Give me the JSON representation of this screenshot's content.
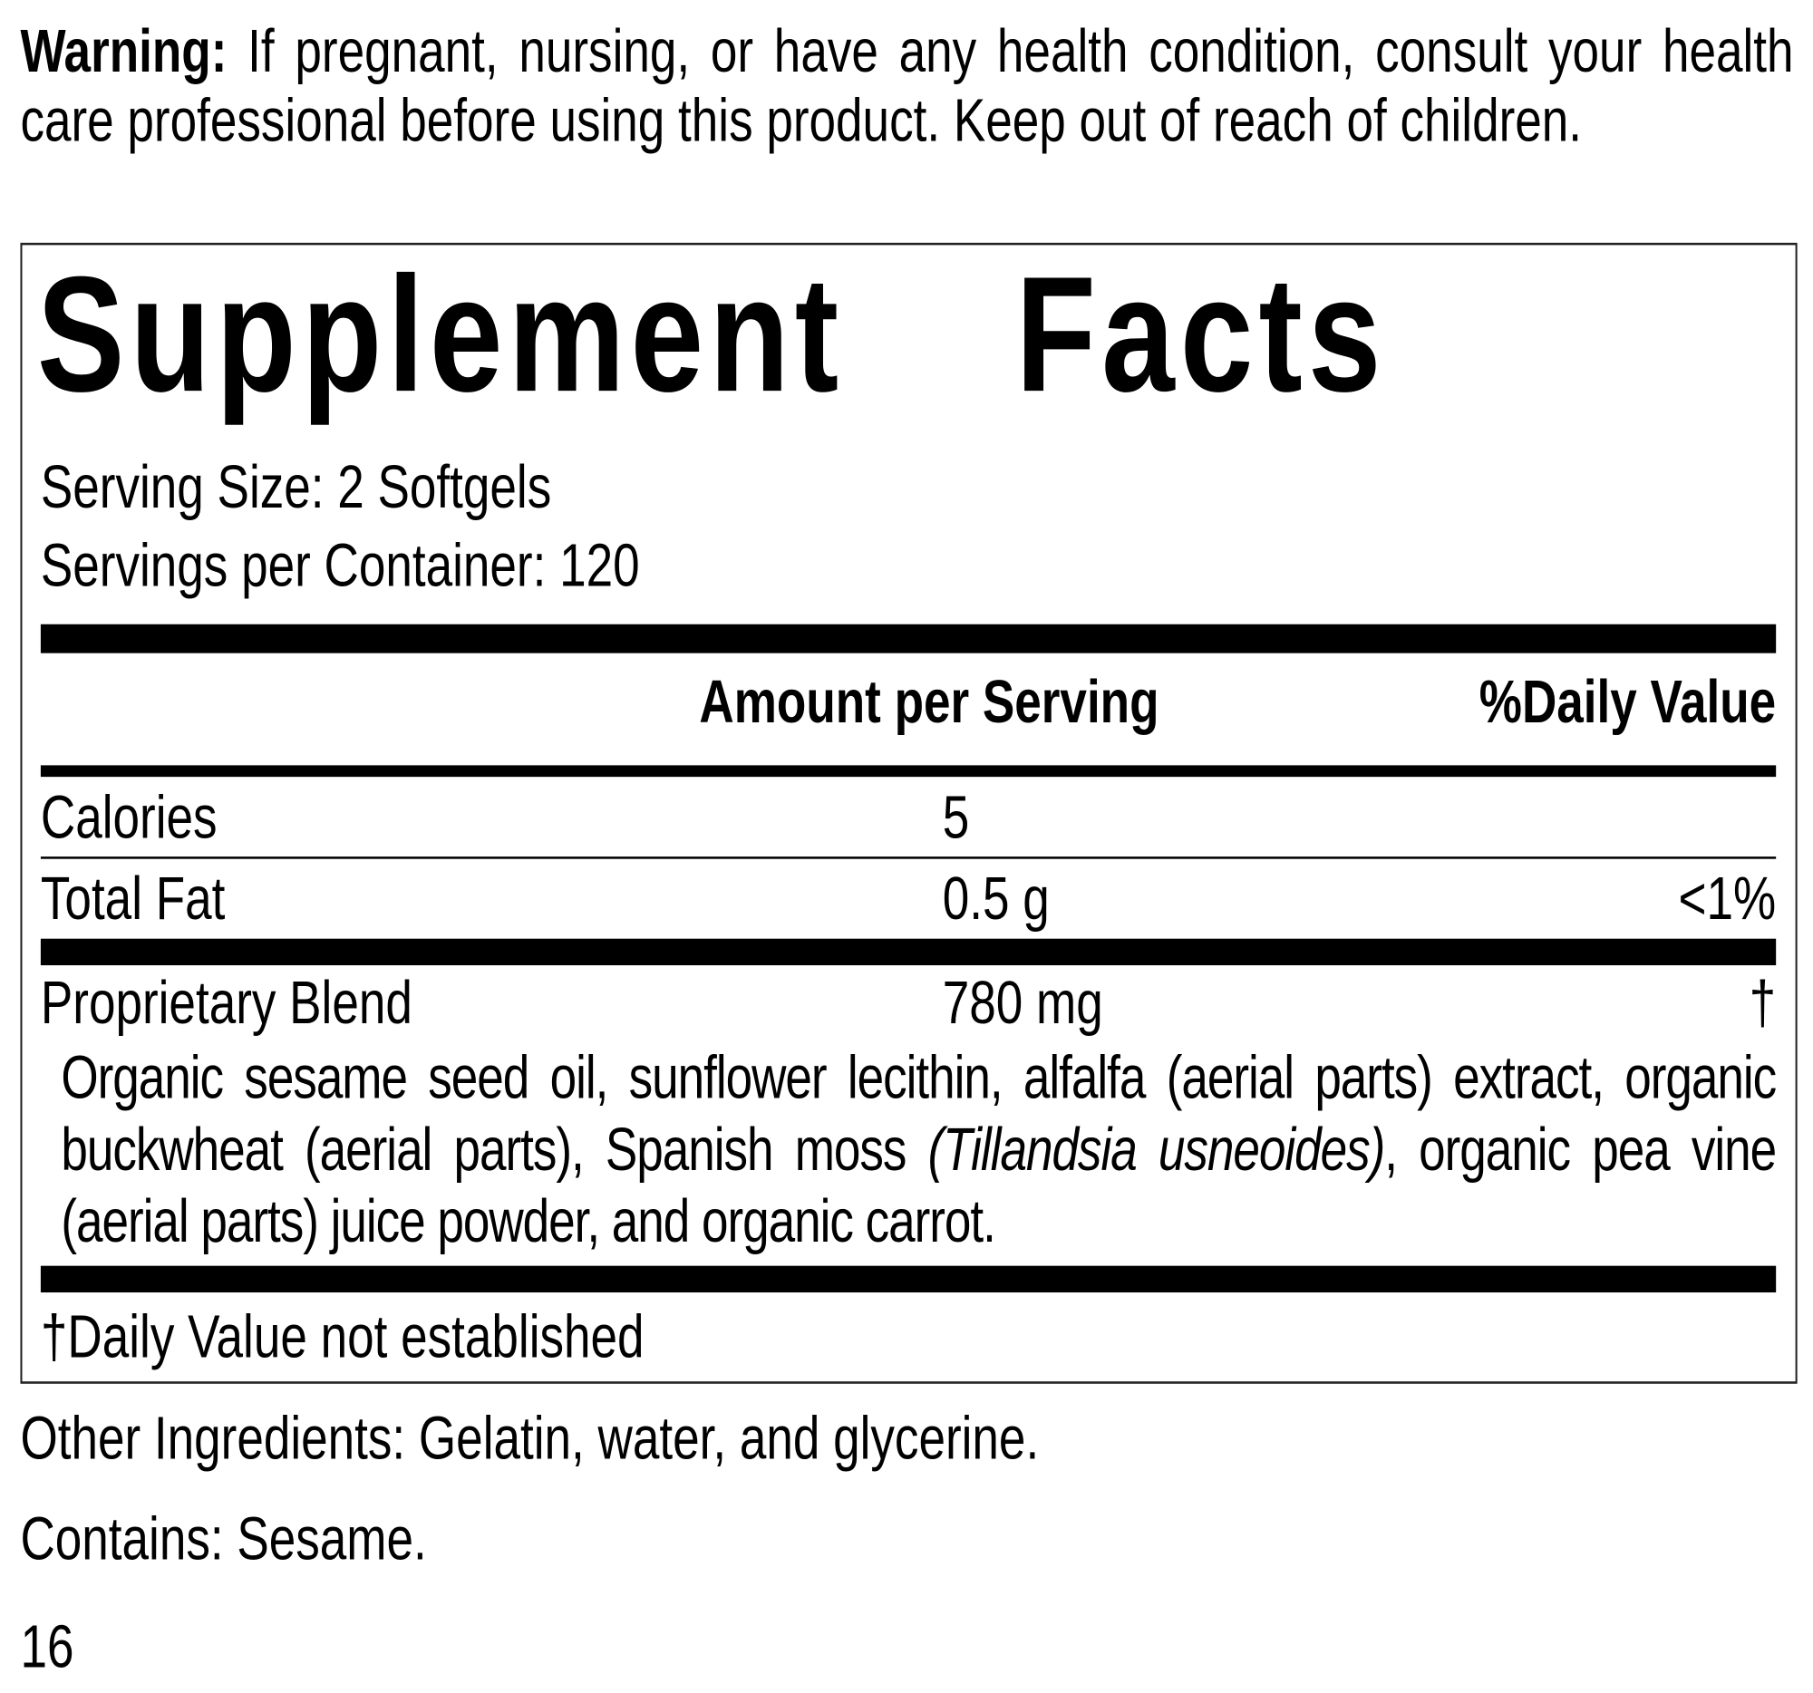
{
  "warning": {
    "label": "Warning:",
    "text": "If pregnant, nursing, or have any health condition, consult your health care professional before using this product. Keep out of reach of children."
  },
  "facts": {
    "title": "Supplement Facts",
    "serving_size": "Serving Size: 2 Softgels",
    "servings_per_container": "Servings per Container: 120",
    "headers": {
      "amount": "Amount per Serving",
      "dv": "%Daily Value"
    },
    "rows": [
      {
        "name": "Calories",
        "amount": "5",
        "dv": ""
      },
      {
        "name": "Total Fat",
        "amount": "0.5 g",
        "dv": "<1%"
      },
      {
        "name": "Proprietary Blend",
        "amount": "780 mg",
        "dv": "†"
      }
    ],
    "blend": {
      "pre": "Organic sesame seed oil, sunflower lecithin, alfalfa (aerial parts) extract, organic buckwheat (aerial parts), Spanish moss ",
      "italic": "(Tillandsia usneoides)",
      "post": ", organic pea vine (aerial parts) juice powder, and organic carrot."
    },
    "footnote": "†Daily Value not established"
  },
  "other_ingredients": "Other Ingredients: Gelatin, water, and glycerine.",
  "contains": "Contains: Sesame.",
  "page_number": "16"
}
